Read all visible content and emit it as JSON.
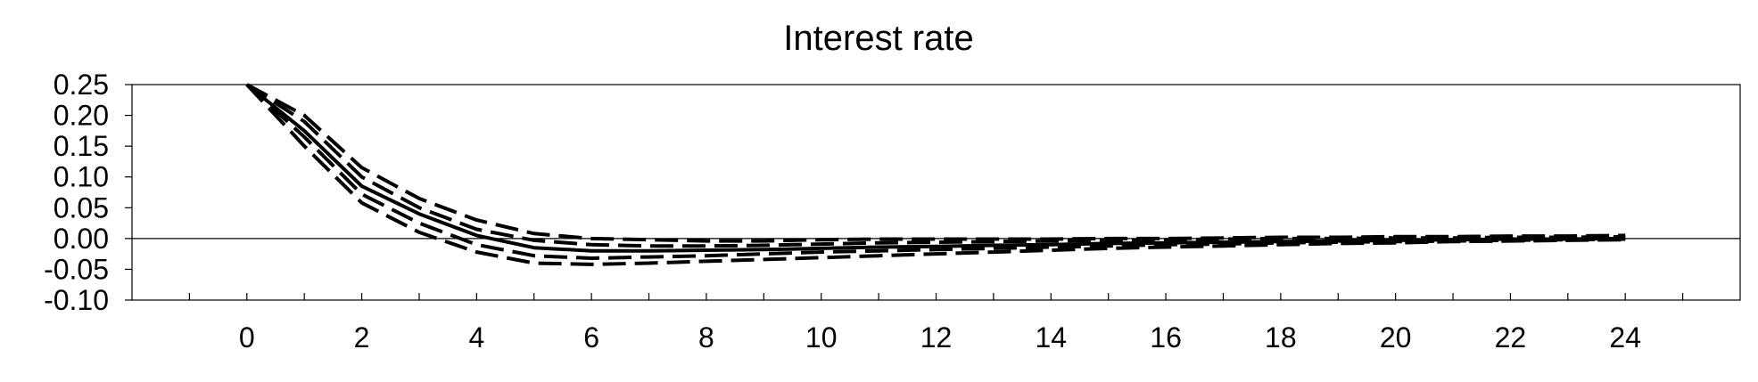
{
  "chart_data": {
    "type": "line",
    "title": "Interest rate",
    "xlabel": "",
    "ylabel": "",
    "xlim": [
      -2,
      26
    ],
    "ylim": [
      -0.1,
      0.25
    ],
    "x_ticks": [
      0,
      2,
      4,
      6,
      8,
      10,
      12,
      14,
      16,
      18,
      20,
      22,
      24
    ],
    "y_ticks": [
      0.25,
      0.2,
      0.15,
      0.1,
      0.05,
      0.0,
      -0.05,
      -0.1
    ],
    "y_tick_labels": [
      "0.25",
      "0.20",
      "0.15",
      "0.10",
      "0.05",
      "0.00",
      "-0.05",
      "-0.10"
    ],
    "grid": false,
    "zero_line": true,
    "x": [
      0,
      1,
      2,
      3,
      4,
      5,
      6,
      7,
      8,
      9,
      10,
      11,
      12,
      13,
      14,
      15,
      16,
      17,
      18,
      19,
      20,
      21,
      22,
      23,
      24
    ],
    "series": [
      {
        "style": "solid",
        "values": [
          0.25,
          0.175,
          0.085,
          0.04,
          0.005,
          -0.015,
          -0.02,
          -0.02,
          -0.019,
          -0.018,
          -0.016,
          -0.014,
          -0.013,
          -0.011,
          -0.01,
          -0.008,
          -0.007,
          -0.006,
          -0.005,
          -0.004,
          -0.003,
          -0.002,
          -0.001,
          -0.001,
          0.0
        ]
      },
      {
        "style": "dashed",
        "values": [
          0.25,
          0.2,
          0.115,
          0.065,
          0.03,
          0.008,
          0.0,
          -0.002,
          -0.004,
          -0.004,
          -0.002,
          -0.001,
          -0.001,
          -0.001,
          -0.001,
          0.0,
          0.0,
          0.001,
          0.002,
          0.002,
          0.003,
          0.003,
          0.004,
          0.004,
          0.005
        ]
      },
      {
        "style": "dashed",
        "values": [
          0.25,
          0.19,
          0.1,
          0.05,
          0.015,
          -0.003,
          -0.01,
          -0.012,
          -0.012,
          -0.011,
          -0.009,
          -0.007,
          -0.006,
          -0.005,
          -0.004,
          -0.003,
          -0.002,
          -0.001,
          0.0,
          0.0,
          0.001,
          0.001,
          0.002,
          0.002,
          0.003
        ]
      },
      {
        "style": "dashed",
        "values": [
          0.25,
          0.165,
          0.072,
          0.025,
          -0.01,
          -0.028,
          -0.032,
          -0.03,
          -0.028,
          -0.025,
          -0.022,
          -0.02,
          -0.018,
          -0.016,
          -0.014,
          -0.012,
          -0.01,
          -0.009,
          -0.007,
          -0.006,
          -0.005,
          -0.004,
          -0.003,
          -0.002,
          -0.001
        ]
      },
      {
        "style": "dashed",
        "values": [
          0.25,
          0.15,
          0.058,
          0.01,
          -0.022,
          -0.04,
          -0.042,
          -0.04,
          -0.037,
          -0.034,
          -0.031,
          -0.028,
          -0.025,
          -0.022,
          -0.019,
          -0.016,
          -0.014,
          -0.012,
          -0.01,
          -0.008,
          -0.007,
          -0.005,
          -0.004,
          -0.003,
          -0.002
        ]
      }
    ]
  }
}
